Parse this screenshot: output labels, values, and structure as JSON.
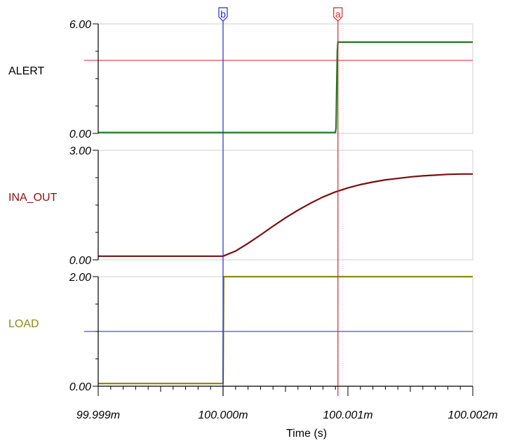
{
  "chart_data": {
    "type": "line",
    "xlabel": "Time (s)",
    "x_ticks": [
      {
        "value": 99.999,
        "label": "99.999m"
      },
      {
        "value": 100.0,
        "label": "100.000m"
      },
      {
        "value": 100.001,
        "label": "100.001m"
      },
      {
        "value": 100.002,
        "label": "100.002m"
      }
    ],
    "xlim": [
      99.999,
      100.002
    ],
    "x_unit": "ms",
    "cursors": [
      {
        "name": "b",
        "x": 100.0,
        "color": "#2a2ad0"
      },
      {
        "name": "a",
        "x": 100.00092,
        "color": "#d02a2a"
      }
    ],
    "panels": [
      {
        "name": "ALERT",
        "label_color": "#000000",
        "color": "#1f7a1f",
        "ylim": [
          0,
          6
        ],
        "y_ticks": [
          {
            "value": 6,
            "label": "6.00"
          },
          {
            "value": 0,
            "label": "0.00"
          }
        ],
        "hline": {
          "value": 4,
          "color": "#e02020"
        },
        "series": {
          "name": "ALERT",
          "x": [
            99.999,
            100.0009,
            100.000905,
            100.00091,
            100.000915,
            100.00092,
            100.002
          ],
          "y": [
            0.05,
            0.05,
            0.3,
            2.5,
            4.5,
            5.0,
            5.0
          ]
        }
      },
      {
        "name": "INA_OUT",
        "label_color": "#8a1010",
        "color": "#7a0f0f",
        "ylim": [
          0,
          3
        ],
        "y_ticks": [
          {
            "value": 3,
            "label": "3.00"
          },
          {
            "value": 0,
            "label": "0.00"
          }
        ],
        "series": {
          "name": "INA_OUT",
          "x": [
            99.999,
            100.0,
            100.0001,
            100.0002,
            100.0003,
            100.0004,
            100.0005,
            100.0006,
            100.0007,
            100.0008,
            100.0009,
            100.001,
            100.0011,
            100.0012,
            100.0013,
            100.0014,
            100.0015,
            100.0016,
            100.0017,
            100.0018,
            100.0019,
            100.002
          ],
          "y": [
            0.1,
            0.1,
            0.24,
            0.45,
            0.68,
            0.92,
            1.15,
            1.36,
            1.55,
            1.72,
            1.86,
            1.97,
            2.06,
            2.13,
            2.19,
            2.23,
            2.27,
            2.3,
            2.32,
            2.34,
            2.35,
            2.35
          ]
        }
      },
      {
        "name": "LOAD",
        "label_color": "#8a8a10",
        "color": "#8a8a10",
        "ylim": [
          0,
          2
        ],
        "y_ticks": [
          {
            "value": 2,
            "label": "2.00"
          },
          {
            "value": 0,
            "label": "0.00"
          }
        ],
        "hline": {
          "value": 1,
          "color": "#2020c0"
        },
        "series": {
          "name": "LOAD",
          "x": [
            99.999,
            100.0,
            100.000005,
            100.002
          ],
          "y": [
            0.05,
            0.05,
            2.0,
            2.0
          ]
        }
      }
    ]
  }
}
